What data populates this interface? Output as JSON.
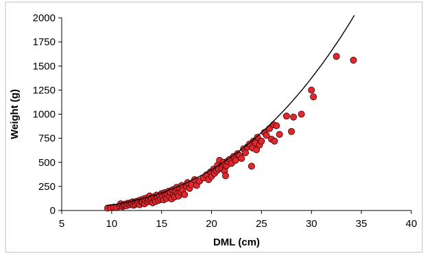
{
  "chart_data": {
    "type": "scatter",
    "title": "",
    "xlabel": "DML (cm)",
    "ylabel": "Weight (g)",
    "xlim": [
      5,
      40
    ],
    "ylim": [
      0,
      2000
    ],
    "x_ticks": [
      "5",
      "10",
      "15",
      "20",
      "25",
      "30",
      "35",
      "40"
    ],
    "y_ticks": [
      "0",
      "250",
      "500",
      "750",
      "1000",
      "1250",
      "1500",
      "1750",
      "2000"
    ],
    "grid": false,
    "legend": "none",
    "colors": {
      "marker_fill": "#e0282e",
      "marker_edge": "#3a0000",
      "trendline": "#000000"
    },
    "trendline": {
      "type": "power",
      "a": 0.0715,
      "b": 2.9,
      "x_range": [
        9.5,
        34.3
      ]
    },
    "series": [
      {
        "name": "",
        "points": [
          [
            9.6,
            25
          ],
          [
            9.9,
            30
          ],
          [
            10.2,
            35
          ],
          [
            10.5,
            30
          ],
          [
            10.8,
            45
          ],
          [
            10.9,
            70
          ],
          [
            11.1,
            40
          ],
          [
            11.2,
            55
          ],
          [
            11.3,
            65
          ],
          [
            11.5,
            50
          ],
          [
            11.6,
            75
          ],
          [
            11.8,
            60
          ],
          [
            11.9,
            80
          ],
          [
            12.0,
            70
          ],
          [
            12.1,
            90
          ],
          [
            12.2,
            55
          ],
          [
            12.3,
            85
          ],
          [
            12.4,
            65
          ],
          [
            12.5,
            95
          ],
          [
            12.6,
            75
          ],
          [
            12.7,
            100
          ],
          [
            12.8,
            60
          ],
          [
            12.9,
            110
          ],
          [
            13.0,
            85
          ],
          [
            13.1,
            95
          ],
          [
            13.2,
            120
          ],
          [
            13.3,
            70
          ],
          [
            13.4,
            105
          ],
          [
            13.5,
            130
          ],
          [
            13.6,
            90
          ],
          [
            13.7,
            115
          ],
          [
            13.8,
            150
          ],
          [
            13.9,
            100
          ],
          [
            14.0,
            125
          ],
          [
            14.1,
            80
          ],
          [
            14.2,
            140
          ],
          [
            14.3,
            110
          ],
          [
            14.4,
            95
          ],
          [
            14.5,
            160
          ],
          [
            14.6,
            130
          ],
          [
            14.7,
            105
          ],
          [
            14.8,
            150
          ],
          [
            14.9,
            120
          ],
          [
            15.0,
            175
          ],
          [
            15.1,
            140
          ],
          [
            15.2,
            110
          ],
          [
            15.3,
            185
          ],
          [
            15.4,
            155
          ],
          [
            15.5,
            125
          ],
          [
            15.6,
            170
          ],
          [
            15.7,
            200
          ],
          [
            15.8,
            145
          ],
          [
            15.9,
            190
          ],
          [
            16.0,
            120
          ],
          [
            16.1,
            215
          ],
          [
            16.2,
            165
          ],
          [
            16.3,
            140
          ],
          [
            16.4,
            200
          ],
          [
            16.5,
            240
          ],
          [
            16.6,
            175
          ],
          [
            16.7,
            150
          ],
          [
            16.8,
            225
          ],
          [
            16.9,
            190
          ],
          [
            17.0,
            260
          ],
          [
            17.1,
            210
          ],
          [
            17.3,
            165
          ],
          [
            17.5,
            250
          ],
          [
            17.6,
            290
          ],
          [
            17.8,
            230
          ],
          [
            18.0,
            270
          ],
          [
            18.3,
            320
          ],
          [
            18.5,
            260
          ],
          [
            18.8,
            305
          ],
          [
            19.2,
            340
          ],
          [
            19.5,
            370
          ],
          [
            19.7,
            320
          ],
          [
            19.9,
            400
          ],
          [
            20.0,
            355
          ],
          [
            20.2,
            430
          ],
          [
            20.3,
            385
          ],
          [
            20.5,
            410
          ],
          [
            20.6,
            470
          ],
          [
            20.7,
            430
          ],
          [
            20.8,
            520
          ],
          [
            21.0,
            440
          ],
          [
            21.1,
            480
          ],
          [
            21.2,
            500
          ],
          [
            21.3,
            410
          ],
          [
            21.4,
            360
          ],
          [
            21.5,
            465
          ],
          [
            21.6,
            510
          ],
          [
            21.8,
            530
          ],
          [
            22.0,
            490
          ],
          [
            22.2,
            560
          ],
          [
            22.4,
            520
          ],
          [
            22.6,
            590
          ],
          [
            22.8,
            570
          ],
          [
            23.0,
            540
          ],
          [
            23.2,
            640
          ],
          [
            23.4,
            600
          ],
          [
            23.6,
            660
          ],
          [
            23.8,
            690
          ],
          [
            24.0,
            460
          ],
          [
            24.1,
            650
          ],
          [
            24.2,
            720
          ],
          [
            24.4,
            700
          ],
          [
            24.5,
            630
          ],
          [
            24.6,
            760
          ],
          [
            24.8,
            680
          ],
          [
            25.0,
            720
          ],
          [
            25.3,
            810
          ],
          [
            25.5,
            780
          ],
          [
            25.8,
            850
          ],
          [
            26.0,
            740
          ],
          [
            26.2,
            890
          ],
          [
            26.3,
            720
          ],
          [
            26.5,
            880
          ],
          [
            26.8,
            790
          ],
          [
            27.5,
            980
          ],
          [
            28.0,
            820
          ],
          [
            28.2,
            970
          ],
          [
            29.0,
            1000
          ],
          [
            30.0,
            1250
          ],
          [
            30.2,
            1180
          ],
          [
            32.5,
            1600
          ],
          [
            34.2,
            1560
          ]
        ]
      }
    ]
  }
}
